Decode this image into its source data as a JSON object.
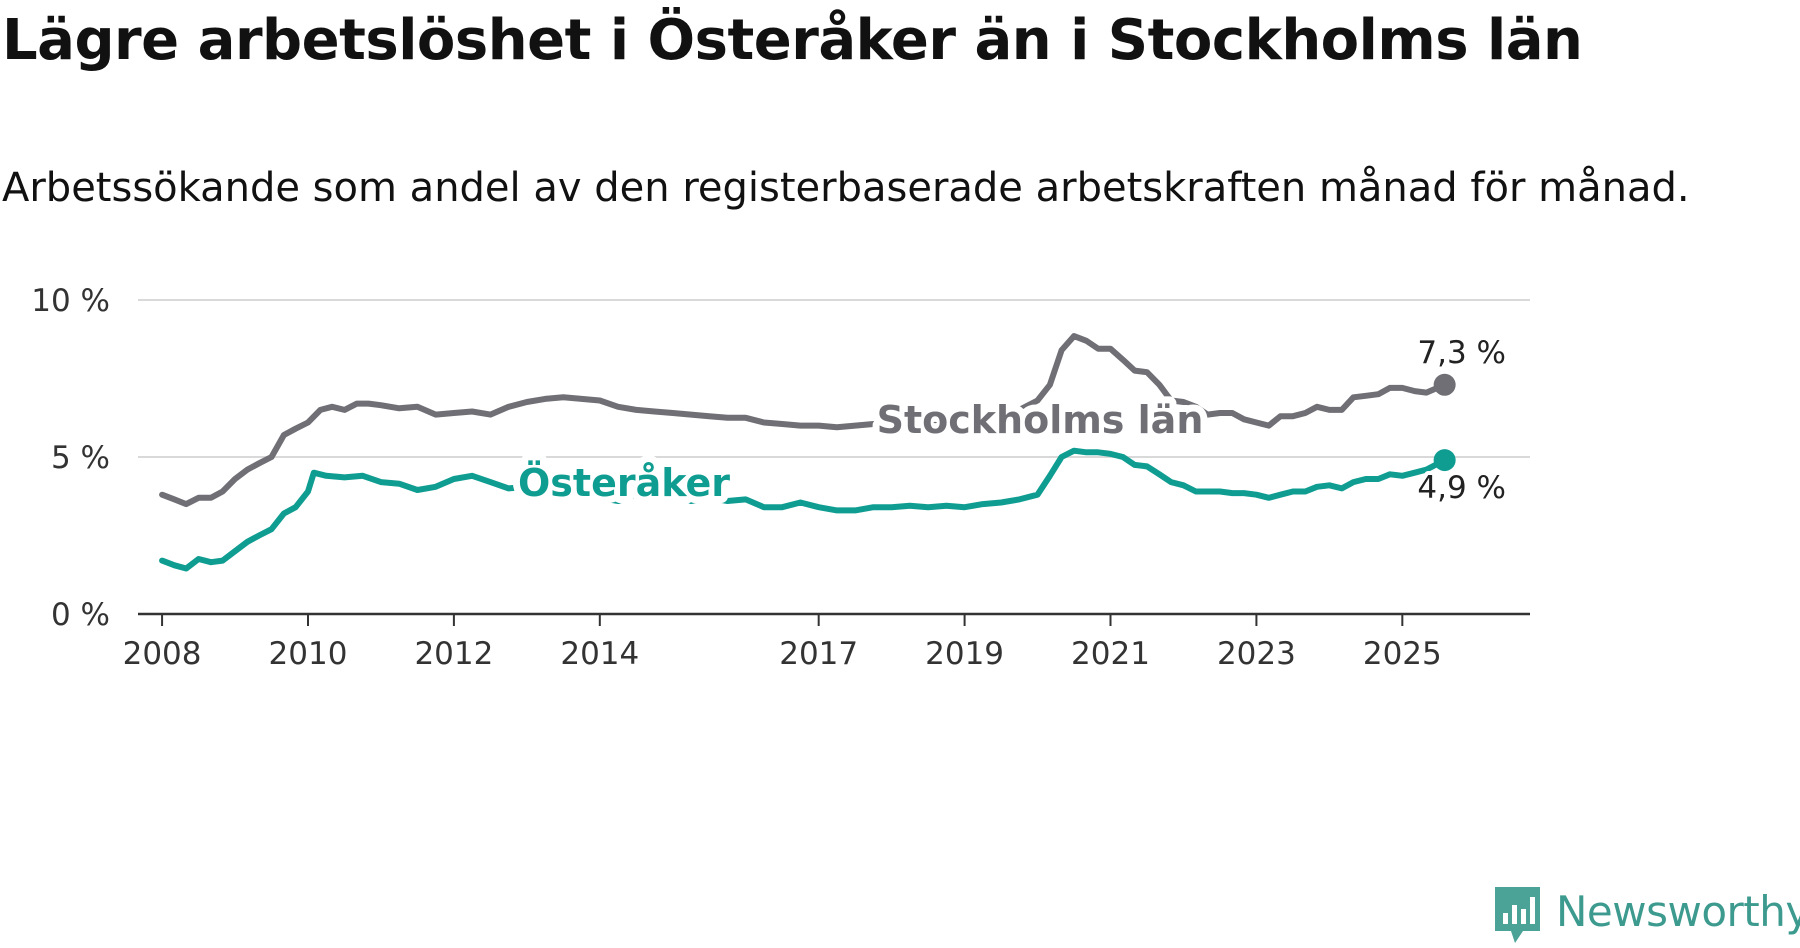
{
  "title": "Lägre arbetslöshet i Österåker än i Stockholms län",
  "subtitle": "Arbetssökande som andel av den registerbaserade arbetskraften månad för månad.",
  "brand": {
    "name": "Newsworthy",
    "icon": "newsworthy-logo-icon",
    "color": "#4aa396"
  },
  "chart_data": {
    "type": "line",
    "title": "Lägre arbetslöshet i Österåker än i Stockholms län",
    "subtitle": "Arbetssökande som andel av den registerbaserade arbetskraften månad för månad.",
    "xlabel": "",
    "ylabel": "",
    "xlim": [
      2007.67,
      2026.75
    ],
    "ylim": [
      0,
      10
    ],
    "grid": true,
    "y_ticks": [
      {
        "value": 0,
        "label": "0 %"
      },
      {
        "value": 5,
        "label": "5 %"
      },
      {
        "value": 10,
        "label": "10 %"
      }
    ],
    "x_ticks": [
      {
        "value": 2008,
        "label": "2008"
      },
      {
        "value": 2010,
        "label": "2010"
      },
      {
        "value": 2012,
        "label": "2012"
      },
      {
        "value": 2014,
        "label": "2014"
      },
      {
        "value": 2017,
        "label": "2017"
      },
      {
        "value": 2019,
        "label": "2019"
      },
      {
        "value": 2021,
        "label": "2021"
      },
      {
        "value": 2023,
        "label": "2023"
      },
      {
        "value": 2025,
        "label": "2025"
      }
    ],
    "legend": "inline labels on lines",
    "series": [
      {
        "name": "Stockholms län",
        "color": "#6f6f75",
        "end_label": "7,3 %",
        "points": [
          [
            2008.0,
            3.8
          ],
          [
            2008.17,
            3.65
          ],
          [
            2008.33,
            3.5
          ],
          [
            2008.5,
            3.7
          ],
          [
            2008.67,
            3.7
          ],
          [
            2008.83,
            3.9
          ],
          [
            2009.0,
            4.3
          ],
          [
            2009.17,
            4.6
          ],
          [
            2009.33,
            4.8
          ],
          [
            2009.5,
            5.0
          ],
          [
            2009.67,
            5.7
          ],
          [
            2009.83,
            5.9
          ],
          [
            2010.0,
            6.1
          ],
          [
            2010.17,
            6.5
          ],
          [
            2010.33,
            6.6
          ],
          [
            2010.5,
            6.5
          ],
          [
            2010.67,
            6.7
          ],
          [
            2010.83,
            6.7
          ],
          [
            2011.0,
            6.65
          ],
          [
            2011.25,
            6.55
          ],
          [
            2011.5,
            6.6
          ],
          [
            2011.75,
            6.35
          ],
          [
            2012.0,
            6.4
          ],
          [
            2012.25,
            6.45
          ],
          [
            2012.5,
            6.35
          ],
          [
            2012.75,
            6.6
          ],
          [
            2013.0,
            6.75
          ],
          [
            2013.25,
            6.85
          ],
          [
            2013.5,
            6.9
          ],
          [
            2013.75,
            6.85
          ],
          [
            2014.0,
            6.8
          ],
          [
            2014.25,
            6.6
          ],
          [
            2014.5,
            6.5
          ],
          [
            2014.75,
            6.45
          ],
          [
            2015.0,
            6.4
          ],
          [
            2015.25,
            6.35
          ],
          [
            2015.5,
            6.3
          ],
          [
            2015.75,
            6.25
          ],
          [
            2016.0,
            6.25
          ],
          [
            2016.25,
            6.1
          ],
          [
            2016.5,
            6.05
          ],
          [
            2016.75,
            6.0
          ],
          [
            2017.0,
            6.0
          ],
          [
            2017.25,
            5.95
          ],
          [
            2017.5,
            6.0
          ],
          [
            2017.75,
            6.05
          ],
          [
            2018.0,
            6.05
          ],
          [
            2018.25,
            6.1
          ],
          [
            2018.5,
            6.1
          ],
          [
            2018.75,
            6.15
          ],
          [
            2019.0,
            6.2
          ],
          [
            2019.25,
            6.3
          ],
          [
            2019.5,
            6.35
          ],
          [
            2019.75,
            6.5
          ],
          [
            2020.0,
            6.8
          ],
          [
            2020.17,
            7.3
          ],
          [
            2020.33,
            8.4
          ],
          [
            2020.5,
            8.85
          ],
          [
            2020.67,
            8.7
          ],
          [
            2020.83,
            8.45
          ],
          [
            2021.0,
            8.45
          ],
          [
            2021.17,
            8.1
          ],
          [
            2021.33,
            7.75
          ],
          [
            2021.5,
            7.7
          ],
          [
            2021.67,
            7.3
          ],
          [
            2021.83,
            6.8
          ],
          [
            2022.0,
            6.75
          ],
          [
            2022.17,
            6.6
          ],
          [
            2022.33,
            6.35
          ],
          [
            2022.5,
            6.4
          ],
          [
            2022.67,
            6.4
          ],
          [
            2022.83,
            6.2
          ],
          [
            2023.0,
            6.1
          ],
          [
            2023.17,
            6.0
          ],
          [
            2023.33,
            6.3
          ],
          [
            2023.5,
            6.3
          ],
          [
            2023.67,
            6.4
          ],
          [
            2023.83,
            6.6
          ],
          [
            2024.0,
            6.5
          ],
          [
            2024.17,
            6.5
          ],
          [
            2024.33,
            6.9
          ],
          [
            2024.5,
            6.95
          ],
          [
            2024.67,
            7.0
          ],
          [
            2024.83,
            7.2
          ],
          [
            2025.0,
            7.2
          ],
          [
            2025.17,
            7.1
          ],
          [
            2025.33,
            7.05
          ],
          [
            2025.58,
            7.3
          ]
        ]
      },
      {
        "name": "Österåker",
        "color": "#0f9d92",
        "end_label": "4,9 %",
        "points": [
          [
            2008.0,
            1.7
          ],
          [
            2008.17,
            1.55
          ],
          [
            2008.33,
            1.45
          ],
          [
            2008.5,
            1.75
          ],
          [
            2008.67,
            1.65
          ],
          [
            2008.83,
            1.7
          ],
          [
            2009.0,
            2.0
          ],
          [
            2009.17,
            2.3
          ],
          [
            2009.33,
            2.5
          ],
          [
            2009.5,
            2.7
          ],
          [
            2009.67,
            3.2
          ],
          [
            2009.83,
            3.4
          ],
          [
            2010.0,
            3.9
          ],
          [
            2010.08,
            4.5
          ],
          [
            2010.25,
            4.4
          ],
          [
            2010.5,
            4.35
          ],
          [
            2010.75,
            4.4
          ],
          [
            2011.0,
            4.2
          ],
          [
            2011.25,
            4.15
          ],
          [
            2011.5,
            3.95
          ],
          [
            2011.75,
            4.05
          ],
          [
            2012.0,
            4.3
          ],
          [
            2012.25,
            4.4
          ],
          [
            2012.5,
            4.2
          ],
          [
            2012.75,
            4.0
          ],
          [
            2013.0,
            4.05
          ],
          [
            2013.25,
            3.95
          ],
          [
            2013.5,
            3.9
          ],
          [
            2013.75,
            3.85
          ],
          [
            2014.0,
            3.7
          ],
          [
            2014.25,
            3.6
          ],
          [
            2014.5,
            3.8
          ],
          [
            2014.75,
            3.9
          ],
          [
            2015.0,
            3.85
          ],
          [
            2015.25,
            3.6
          ],
          [
            2015.5,
            3.7
          ],
          [
            2015.75,
            3.6
          ],
          [
            2016.0,
            3.65
          ],
          [
            2016.25,
            3.4
          ],
          [
            2016.5,
            3.4
          ],
          [
            2016.75,
            3.55
          ],
          [
            2017.0,
            3.4
          ],
          [
            2017.25,
            3.3
          ],
          [
            2017.5,
            3.3
          ],
          [
            2017.75,
            3.4
          ],
          [
            2018.0,
            3.4
          ],
          [
            2018.25,
            3.45
          ],
          [
            2018.5,
            3.4
          ],
          [
            2018.75,
            3.45
          ],
          [
            2019.0,
            3.4
          ],
          [
            2019.25,
            3.5
          ],
          [
            2019.5,
            3.55
          ],
          [
            2019.75,
            3.65
          ],
          [
            2020.0,
            3.8
          ],
          [
            2020.17,
            4.4
          ],
          [
            2020.33,
            5.0
          ],
          [
            2020.5,
            5.2
          ],
          [
            2020.67,
            5.15
          ],
          [
            2020.83,
            5.15
          ],
          [
            2021.0,
            5.1
          ],
          [
            2021.17,
            5.0
          ],
          [
            2021.33,
            4.75
          ],
          [
            2021.5,
            4.7
          ],
          [
            2021.67,
            4.45
          ],
          [
            2021.83,
            4.2
          ],
          [
            2022.0,
            4.1
          ],
          [
            2022.17,
            3.9
          ],
          [
            2022.33,
            3.9
          ],
          [
            2022.5,
            3.9
          ],
          [
            2022.67,
            3.85
          ],
          [
            2022.83,
            3.85
          ],
          [
            2023.0,
            3.8
          ],
          [
            2023.17,
            3.7
          ],
          [
            2023.33,
            3.8
          ],
          [
            2023.5,
            3.9
          ],
          [
            2023.67,
            3.9
          ],
          [
            2023.83,
            4.05
          ],
          [
            2024.0,
            4.1
          ],
          [
            2024.17,
            4.0
          ],
          [
            2024.33,
            4.2
          ],
          [
            2024.5,
            4.3
          ],
          [
            2024.67,
            4.3
          ],
          [
            2024.83,
            4.45
          ],
          [
            2025.0,
            4.4
          ],
          [
            2025.17,
            4.5
          ],
          [
            2025.33,
            4.6
          ],
          [
            2025.58,
            4.9
          ]
        ]
      }
    ]
  }
}
